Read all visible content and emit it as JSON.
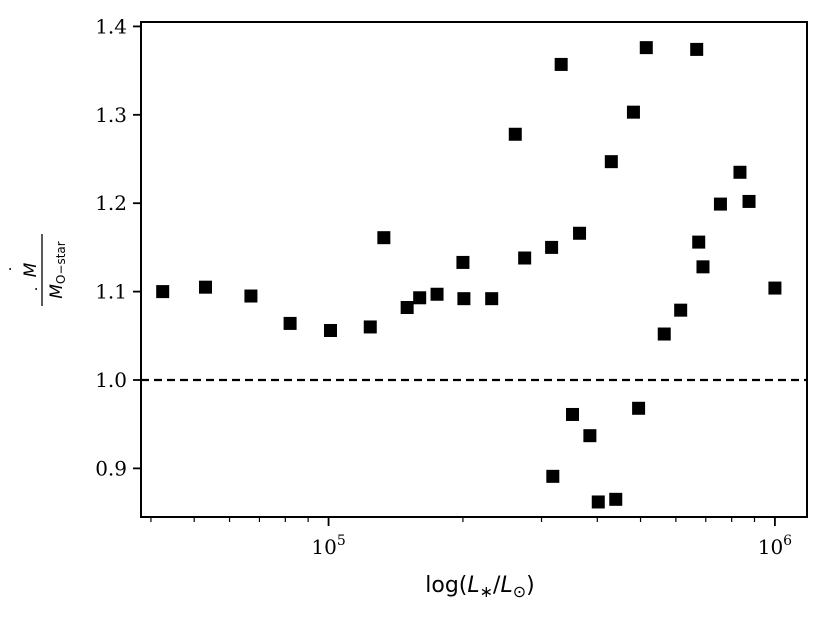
{
  "chart_data": {
    "type": "scatter",
    "title": "",
    "xlabel": "log(L*/L⊙)",
    "ylabel": "Ṁ / ṀO−star",
    "xscale": "log",
    "xlim": [
      38000,
      1180000
    ],
    "ylim": [
      0.845,
      1.405
    ],
    "grid": false,
    "marker": "square",
    "color": "#000000",
    "reference_line": {
      "y": 1.0,
      "style": "dashed"
    },
    "x_tick_labels": [
      {
        "value": 100000,
        "base": "10",
        "exp": "5"
      },
      {
        "value": 1000000,
        "base": "10",
        "exp": "6"
      }
    ],
    "y_ticks": [
      0.9,
      1.0,
      1.1,
      1.2,
      1.3,
      1.4
    ],
    "y_tick_labels": [
      "0.9",
      "1.0",
      "1.1",
      "1.2",
      "1.3",
      "1.4"
    ],
    "points": [
      {
        "x": 42500,
        "y": 1.1
      },
      {
        "x": 53000,
        "y": 1.105
      },
      {
        "x": 67000,
        "y": 1.095
      },
      {
        "x": 82000,
        "y": 1.064
      },
      {
        "x": 101000,
        "y": 1.056
      },
      {
        "x": 124000,
        "y": 1.06
      },
      {
        "x": 133000,
        "y": 1.161
      },
      {
        "x": 150000,
        "y": 1.082
      },
      {
        "x": 160000,
        "y": 1.093
      },
      {
        "x": 175000,
        "y": 1.097
      },
      {
        "x": 200000,
        "y": 1.133
      },
      {
        "x": 201000,
        "y": 1.092
      },
      {
        "x": 232000,
        "y": 1.092
      },
      {
        "x": 262000,
        "y": 1.278
      },
      {
        "x": 275000,
        "y": 1.138
      },
      {
        "x": 316000,
        "y": 1.15
      },
      {
        "x": 318000,
        "y": 0.891
      },
      {
        "x": 332000,
        "y": 1.357
      },
      {
        "x": 352000,
        "y": 0.961
      },
      {
        "x": 365000,
        "y": 1.166
      },
      {
        "x": 385000,
        "y": 0.937
      },
      {
        "x": 402000,
        "y": 0.862
      },
      {
        "x": 430000,
        "y": 1.247
      },
      {
        "x": 440000,
        "y": 0.865
      },
      {
        "x": 482000,
        "y": 1.303
      },
      {
        "x": 495000,
        "y": 0.968
      },
      {
        "x": 515000,
        "y": 1.376
      },
      {
        "x": 565000,
        "y": 1.052
      },
      {
        "x": 615000,
        "y": 1.079
      },
      {
        "x": 668000,
        "y": 1.374
      },
      {
        "x": 675000,
        "y": 1.156
      },
      {
        "x": 690000,
        "y": 1.128
      },
      {
        "x": 755000,
        "y": 1.199
      },
      {
        "x": 835000,
        "y": 1.235
      },
      {
        "x": 875000,
        "y": 1.202
      },
      {
        "x": 1000000,
        "y": 1.104
      }
    ]
  }
}
